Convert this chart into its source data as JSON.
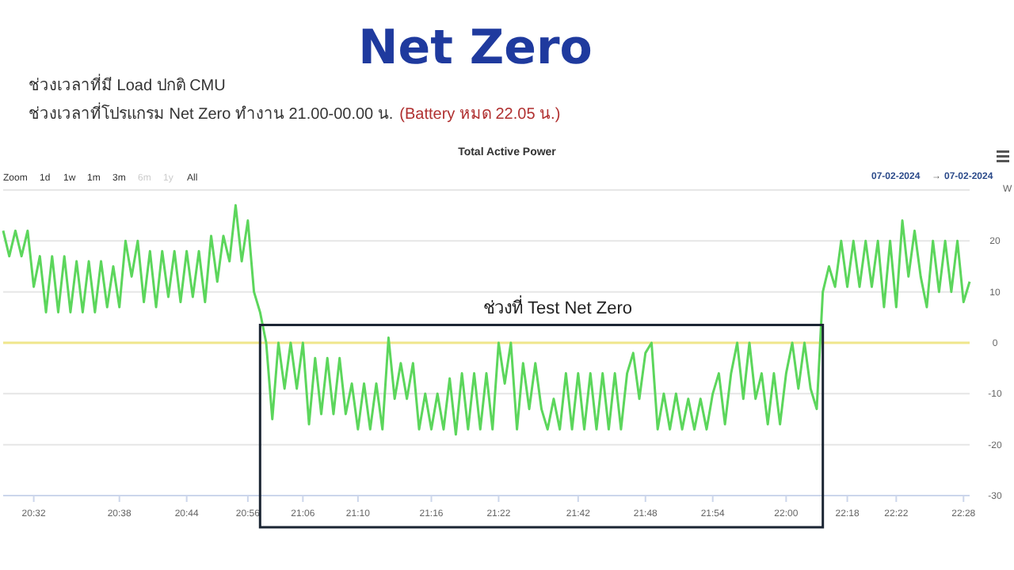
{
  "chart_data": {
    "type": "line",
    "title": "Net Zero",
    "subtitle": "Total Active Power",
    "ylabel": "W",
    "annotations": [
      "ช่วงเวลาที่มี Load ปกติ CMU",
      "ช่วงเวลาที่โปรแกรม Net Zero ทำงาน 21.00-00.00 น.",
      "(Battery หมด 22.05 น.)",
      "ช่วงที่ Test Net Zero",
      "Zoom",
      "1d",
      "1w",
      "1m",
      "3m",
      "6m",
      "1y",
      "All",
      "07-02-2024",
      "→",
      "07-02-2024"
    ],
    "categories": [
      null,
      null,
      null,
      null,
      null,
      "20:32",
      null,
      null,
      null,
      null,
      null,
      null,
      null,
      null,
      null,
      null,
      null,
      null,
      null,
      "20:38",
      null,
      null,
      null,
      null,
      null,
      null,
      null,
      null,
      null,
      null,
      "20:44",
      null,
      null,
      null,
      null,
      null,
      null,
      null,
      null,
      null,
      "20:56",
      null,
      null,
      null,
      null,
      null,
      null,
      null,
      null,
      "21:06",
      null,
      null,
      null,
      null,
      null,
      null,
      null,
      null,
      "21:10",
      null,
      null,
      null,
      null,
      null,
      null,
      null,
      null,
      null,
      null,
      null,
      "21:16",
      null,
      null,
      null,
      null,
      null,
      null,
      null,
      null,
      null,
      null,
      "21:22",
      null,
      null,
      null,
      null,
      null,
      null,
      null,
      null,
      null,
      null,
      null,
      null,
      "21:42",
      null,
      null,
      null,
      null,
      null,
      null,
      null,
      null,
      null,
      null,
      "21:48",
      null,
      null,
      null,
      null,
      null,
      null,
      null,
      null,
      null,
      null,
      "21:54",
      null,
      null,
      null,
      null,
      null,
      null,
      null,
      null,
      null,
      null,
      null,
      "22:00",
      null,
      null,
      null,
      null,
      null,
      null,
      null,
      null,
      null,
      "22:18",
      null,
      null,
      null,
      null,
      null,
      null,
      null,
      "22:22",
      null,
      null,
      null,
      null,
      null,
      null,
      null,
      null,
      null,
      null,
      "22:28",
      null
    ],
    "series": [
      {
        "color": "#5cd65c",
        "values": [
          22,
          17,
          22,
          17,
          22,
          11,
          17,
          6,
          17,
          6,
          17,
          6,
          16,
          6,
          16,
          6,
          16,
          7,
          15,
          7,
          20,
          13,
          20,
          8,
          18,
          7,
          18,
          9,
          18,
          8,
          18,
          9,
          18,
          8,
          21,
          12,
          21,
          16,
          27,
          16,
          24,
          10,
          6,
          0,
          -15,
          0,
          -9,
          0,
          -9,
          0,
          -16,
          -3,
          -14,
          -3,
          -14,
          -3,
          -14,
          -8,
          -17,
          -8,
          -17,
          -8,
          -17,
          1,
          -11,
          -4,
          -11,
          -4,
          -17,
          -10,
          -17,
          -10,
          -17,
          -7,
          -18,
          -6,
          -17,
          -6,
          -17,
          -6,
          -17,
          0,
          -8,
          0,
          -17,
          -4,
          -13,
          -4,
          -13,
          -17,
          -11,
          -17,
          -6,
          -17,
          -6,
          -17,
          -6,
          -17,
          -6,
          -17,
          -6,
          -17,
          -6,
          -2,
          -11,
          -2,
          0,
          -17,
          -10,
          -17,
          -10,
          -17,
          -11,
          -17,
          -11,
          -17,
          -10,
          -6,
          -16,
          -6,
          0,
          -11,
          0,
          -11,
          -6,
          -16,
          -6,
          -16,
          -6,
          0,
          -9,
          0,
          -9,
          -13,
          10,
          15,
          11,
          20,
          11,
          20,
          11,
          20,
          11,
          20,
          7,
          20,
          7,
          24,
          13,
          22,
          13,
          7,
          20,
          10,
          20,
          10,
          20,
          8,
          12
        ]
      }
    ],
    "ylim": [
      -30,
      30
    ],
    "yticks": [
      -30,
      -20,
      -10,
      0,
      10,
      20
    ],
    "grid": "y",
    "ref_lines": [
      {
        "axis": "y",
        "value": 0,
        "color": "#f0e68c"
      }
    ]
  }
}
